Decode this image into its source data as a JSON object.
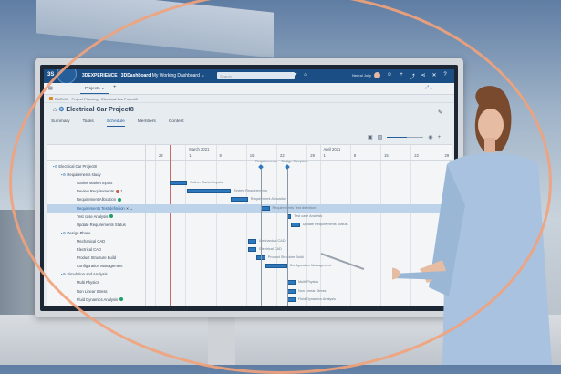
{
  "app": {
    "brand": "3DEXPERIENCE | 3DDashboard",
    "dashboard": "My Working Dashboard",
    "search_placeholder": "Search",
    "user": "Neeral Jolly",
    "project_tab": "Projects"
  },
  "breadcrumb": "ENOVIA · Project Planning · Electrical Car Project8",
  "page_title": "Electrical Car Project8",
  "tabs": [
    {
      "label": "Summary"
    },
    {
      "label": "Tasks"
    },
    {
      "label": "Schedule",
      "active": true
    },
    {
      "label": "Members"
    },
    {
      "label": "Content"
    }
  ],
  "timeline": {
    "months": [
      {
        "label": "March 2021",
        "date": "2021-03-01"
      },
      {
        "label": "April 2021",
        "date": "2021-04-01"
      }
    ],
    "ticks": [
      {
        "label": "22",
        "date": "2021-02-22"
      },
      {
        "label": "1",
        "date": "2021-03-01"
      },
      {
        "label": "8",
        "date": "2021-03-08"
      },
      {
        "label": "15",
        "date": "2021-03-15"
      },
      {
        "label": "22",
        "date": "2021-03-22"
      },
      {
        "label": "29",
        "date": "2021-03-29"
      },
      {
        "label": "1",
        "date": "2021-04-01"
      },
      {
        "label": "8",
        "date": "2021-04-08"
      },
      {
        "label": "15",
        "date": "2021-04-15"
      },
      {
        "label": "22",
        "date": "2021-04-22"
      },
      {
        "label": "29",
        "date": "2021-04-29"
      }
    ],
    "today": "2021-02-25",
    "milestones": [
      {
        "label": "Requirements",
        "date": "2021-03-18"
      },
      {
        "label": "Design Complete",
        "date": "2021-03-24"
      }
    ]
  },
  "rows": [
    {
      "label": "Electrical Car Project8",
      "level": 0,
      "group": true
    },
    {
      "label": "Requirements study",
      "level": 1,
      "group": true
    },
    {
      "label": "Gather Market Inputs",
      "level": 2,
      "start": "2021-02-25",
      "end": "2021-03-01",
      "bar_label": "Gather Market Inputs"
    },
    {
      "label": "Review Requirements",
      "level": 2,
      "badge": "#d9534f",
      "badge_text": "1",
      "start": "2021-03-01",
      "end": "2021-03-11",
      "bar_label": "Review Requirements"
    },
    {
      "label": "Requirement Allocation",
      "level": 2,
      "badge": "#1f9d6b",
      "start": "2021-03-11",
      "end": "2021-03-15",
      "bar_label": "Requirement Allocation"
    },
    {
      "label": "Requirements Test definition",
      "level": 2,
      "selected": true,
      "start": "2021-03-18",
      "end": "2021-03-20",
      "bar_label": "Requirements Test definition"
    },
    {
      "label": "Test case Analysis",
      "level": 2,
      "badge": "#1f9d6b",
      "start": "2021-03-24",
      "end": "2021-03-25",
      "bar_label": "Test case Analysis"
    },
    {
      "label": "Update Requirements Status",
      "level": 2,
      "start": "2021-03-25",
      "end": "2021-03-27",
      "bar_label": "Update Requirements Status"
    },
    {
      "label": "Design Phase",
      "level": 1,
      "group": true
    },
    {
      "label": "Mechanical CAD",
      "level": 2,
      "start": "2021-03-15",
      "end": "2021-03-17",
      "bar_label": "Mechanical CAD"
    },
    {
      "label": "Electrical CAD",
      "level": 2,
      "start": "2021-03-15",
      "end": "2021-03-17",
      "bar_label": "Electrical CAD"
    },
    {
      "label": "Product Structure Build",
      "level": 2,
      "start": "2021-03-17",
      "end": "2021-03-19",
      "bar_label": "Product Structure Build"
    },
    {
      "label": "Configuration Management",
      "level": 2,
      "start": "2021-03-19",
      "end": "2021-03-24",
      "bar_label": "Configuration Management"
    },
    {
      "label": "Simulation and Analysis",
      "level": 1,
      "group": true
    },
    {
      "label": "Multi Physics",
      "level": 2,
      "start": "2021-03-24",
      "end": "2021-03-26",
      "bar_label": "Multi Physics"
    },
    {
      "label": "Non Linear Stress",
      "level": 2,
      "start": "2021-03-24",
      "end": "2021-03-26",
      "bar_label": "Non Linear Stress"
    },
    {
      "label": "Fluid Dynamics Analysis",
      "level": 2,
      "badge": "#1f9d6b",
      "start": "2021-03-24",
      "end": "2021-03-26",
      "bar_label": "Fluid Dynamics Analysis"
    }
  ],
  "zoom_level": 0.55,
  "colors": {
    "topbar": "#1b4e85",
    "accent": "#2e79bd",
    "ring": "#f2a27a"
  }
}
